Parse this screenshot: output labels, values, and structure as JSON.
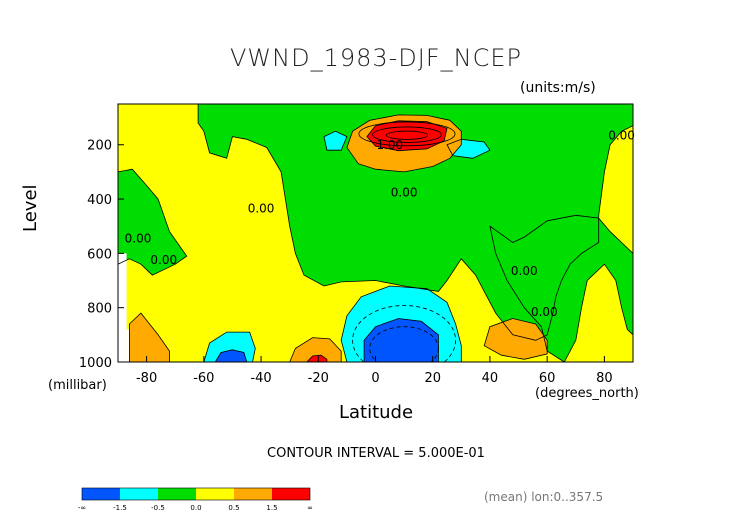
{
  "chart_data": {
    "type": "heatmap",
    "subtype": "filled-contour",
    "title": "VWND_1983-DJF_NCEP",
    "units": "(units:m/s)",
    "xlabel": "Latitude",
    "x_unit": "(degrees_north)",
    "ylabel": "Level",
    "y_unit": "(millibar)",
    "xlim": [
      -90,
      90
    ],
    "ylim": [
      1000,
      50
    ],
    "y_inverted": true,
    "x_ticks": [
      -80,
      -60,
      -40,
      -20,
      0,
      20,
      40,
      60,
      80
    ],
    "y_ticks": [
      200,
      400,
      600,
      800,
      1000
    ],
    "contour_interval_text": "CONTOUR INTERVAL = 5.000E-01",
    "mean_text": "(mean) lon:0..357.5",
    "contour_labels": [
      {
        "text": "1.00",
        "lat": 5,
        "lev": 215
      },
      {
        "text": "0.00",
        "lat": 10,
        "lev": 390
      },
      {
        "text": "0.00",
        "lat": -40,
        "lev": 450
      },
      {
        "text": "0.00",
        "lat": -83,
        "lev": 560
      },
      {
        "text": "0.00",
        "lat": -74,
        "lev": 640
      },
      {
        "text": "0.00",
        "lat": 52,
        "lev": 680
      },
      {
        "text": "0.00",
        "lat": 59,
        "lev": 830
      },
      {
        "text": "0.00",
        "lat": 86,
        "lev": 180
      }
    ],
    "colorbar": {
      "colors": [
        "#0055ff",
        "#00ffff",
        "#00dd00",
        "#ffff00",
        "#ffaa00",
        "#ff0000"
      ],
      "labels": [
        "-∞",
        "-1.5",
        "-0.5",
        "0.0",
        "0.5",
        "1.5",
        "∞"
      ]
    },
    "regions": [
      {
        "level": 0.25,
        "color": "#ffff00",
        "lat": [
          -90,
          90
        ],
        "lev": [
          50,
          1000
        ],
        "desc": "background"
      },
      {
        "level": -0.25,
        "color": "#00dd00",
        "desc": "upper-central band"
      },
      {
        "level": -0.25,
        "color": "#00dd00",
        "desc": "lower-right band"
      },
      {
        "level": -0.25,
        "color": "#00dd00",
        "desc": "upper-left column"
      },
      {
        "level": -0.75,
        "color": "#00ffff",
        "lat": [
          -18,
          -10
        ],
        "lev": [
          150,
          230
        ]
      },
      {
        "level": -0.75,
        "color": "#00ffff",
        "lat": [
          25,
          40
        ],
        "lev": [
          180,
          250
        ]
      },
      {
        "level": 0.75,
        "color": "#ffaa00",
        "lat": [
          -10,
          30
        ],
        "lev": [
          90,
          300
        ],
        "desc": "upper jet"
      },
      {
        "level": 1.75,
        "color": "#ff0000",
        "lat": [
          -3,
          25
        ],
        "lev": [
          110,
          220
        ],
        "peak_lat": 8,
        "peak_lev": 165
      },
      {
        "level": -0.75,
        "color": "#00ffff",
        "lat": [
          -10,
          30
        ],
        "lev": [
          720,
          1000
        ],
        "desc": "lower"
      },
      {
        "level": -1.75,
        "color": "#0055ff",
        "lat": [
          -4,
          22
        ],
        "lev": [
          840,
          1000
        ],
        "peak_lat": 8,
        "peak_lev": 960
      },
      {
        "level": -0.75,
        "color": "#00ffff",
        "lat": [
          -60,
          -42
        ],
        "lev": [
          880,
          1000
        ]
      },
      {
        "level": -1.75,
        "color": "#0055ff",
        "lat": [
          -56,
          -44
        ],
        "lev": [
          950,
          1000
        ]
      },
      {
        "level": 0.75,
        "color": "#ffaa00",
        "lat": [
          -30,
          -12
        ],
        "lev": [
          900,
          1000
        ]
      },
      {
        "level": 1.75,
        "color": "#ff0000",
        "lat": [
          -24,
          -18
        ],
        "lev": [
          970,
          1000
        ]
      },
      {
        "level": 0.75,
        "color": "#ffaa00",
        "lat": [
          -86,
          -72
        ],
        "lev": [
          820,
          1000
        ]
      },
      {
        "level": 0.75,
        "color": "#ffaa00",
        "lat": [
          38,
          60
        ],
        "lev": [
          840,
          1000
        ]
      }
    ]
  }
}
